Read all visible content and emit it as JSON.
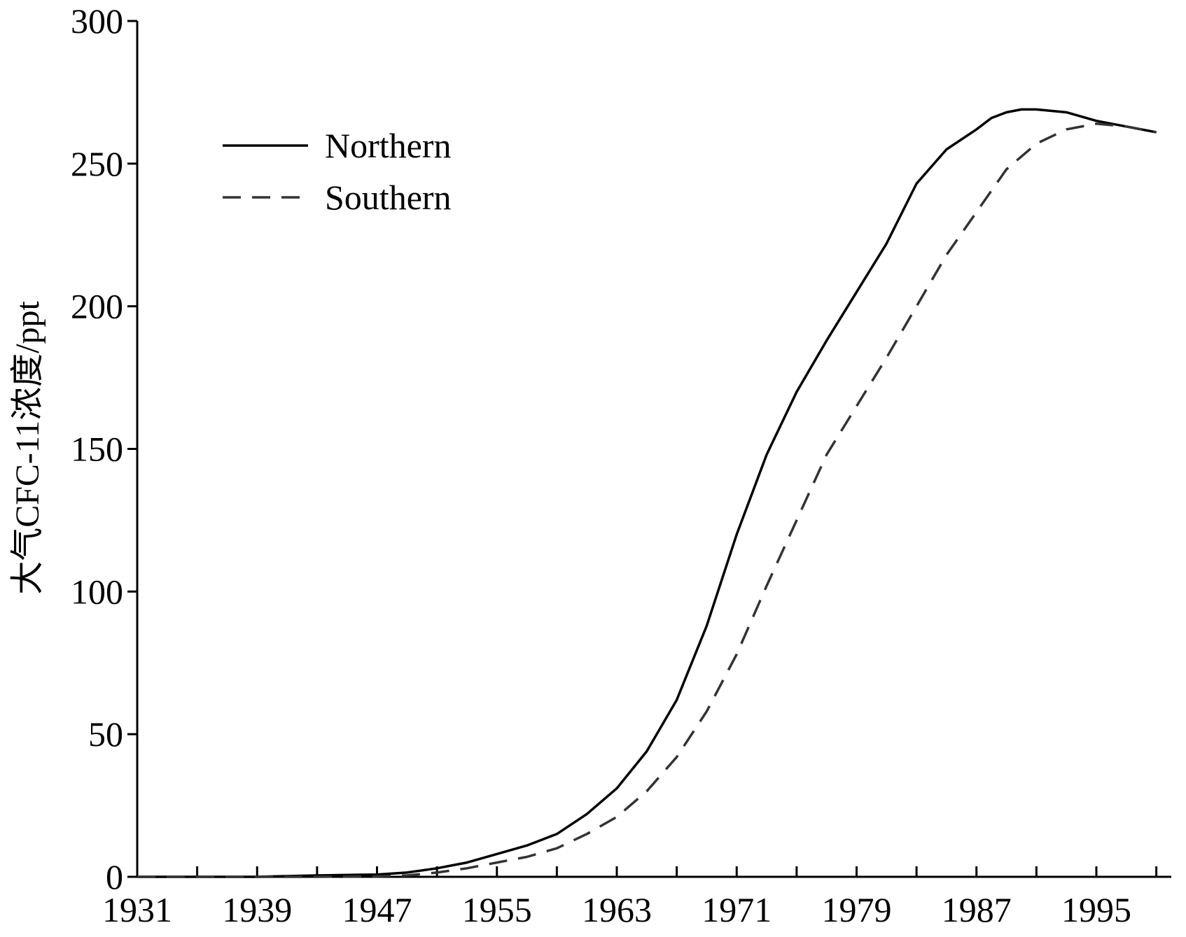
{
  "chart_data": {
    "type": "line",
    "title": "",
    "xlabel": "",
    "ylabel": "大气CFC-11浓度/ppt",
    "xlim": [
      1931,
      2000
    ],
    "ylim": [
      0,
      300
    ],
    "xticks": [
      1931,
      1935,
      1939,
      1943,
      1947,
      1951,
      1955,
      1959,
      1963,
      1967,
      1971,
      1975,
      1979,
      1983,
      1987,
      1991,
      1995,
      1999
    ],
    "xtick_labels": [
      "1931",
      "1939",
      "1947",
      "1955",
      "1963",
      "1971",
      "1979",
      "1987",
      "1995"
    ],
    "yticks": [
      0,
      50,
      100,
      150,
      200,
      250,
      300
    ],
    "ytick_labels": [
      "0",
      "50",
      "100",
      "150",
      "200",
      "250",
      "300"
    ],
    "grid": false,
    "legend_position": "top-left",
    "series": [
      {
        "name": "Northern",
        "style": "solid",
        "color": "#000000",
        "x": [
          1931,
          1935,
          1939,
          1943,
          1947,
          1949,
          1951,
          1953,
          1955,
          1957,
          1959,
          1961,
          1963,
          1965,
          1967,
          1969,
          1971,
          1973,
          1975,
          1977,
          1979,
          1981,
          1983,
          1985,
          1987,
          1988,
          1989,
          1990,
          1991,
          1993,
          1995,
          1997,
          1999
        ],
        "y": [
          0,
          0,
          0,
          0.5,
          0.8,
          1.5,
          3,
          5,
          8,
          11,
          15,
          22,
          31,
          44,
          62,
          88,
          120,
          148,
          170,
          188,
          205,
          222,
          243,
          255,
          262,
          266,
          268,
          269,
          269,
          268,
          265,
          263,
          261
        ]
      },
      {
        "name": "Southern",
        "style": "dashed",
        "color": "#333333",
        "x": [
          1931,
          1935,
          1939,
          1943,
          1947,
          1949,
          1951,
          1953,
          1955,
          1957,
          1959,
          1961,
          1963,
          1965,
          1967,
          1969,
          1971,
          1973,
          1975,
          1977,
          1979,
          1981,
          1983,
          1985,
          1987,
          1989,
          1991,
          1993,
          1995,
          1997,
          1999
        ],
        "y": [
          0,
          0,
          0,
          0,
          0.2,
          0.5,
          1.5,
          3,
          5,
          7,
          10,
          15,
          21,
          30,
          42,
          58,
          78,
          102,
          125,
          148,
          165,
          182,
          200,
          218,
          233,
          248,
          257,
          262,
          264,
          263,
          261
        ]
      }
    ]
  }
}
